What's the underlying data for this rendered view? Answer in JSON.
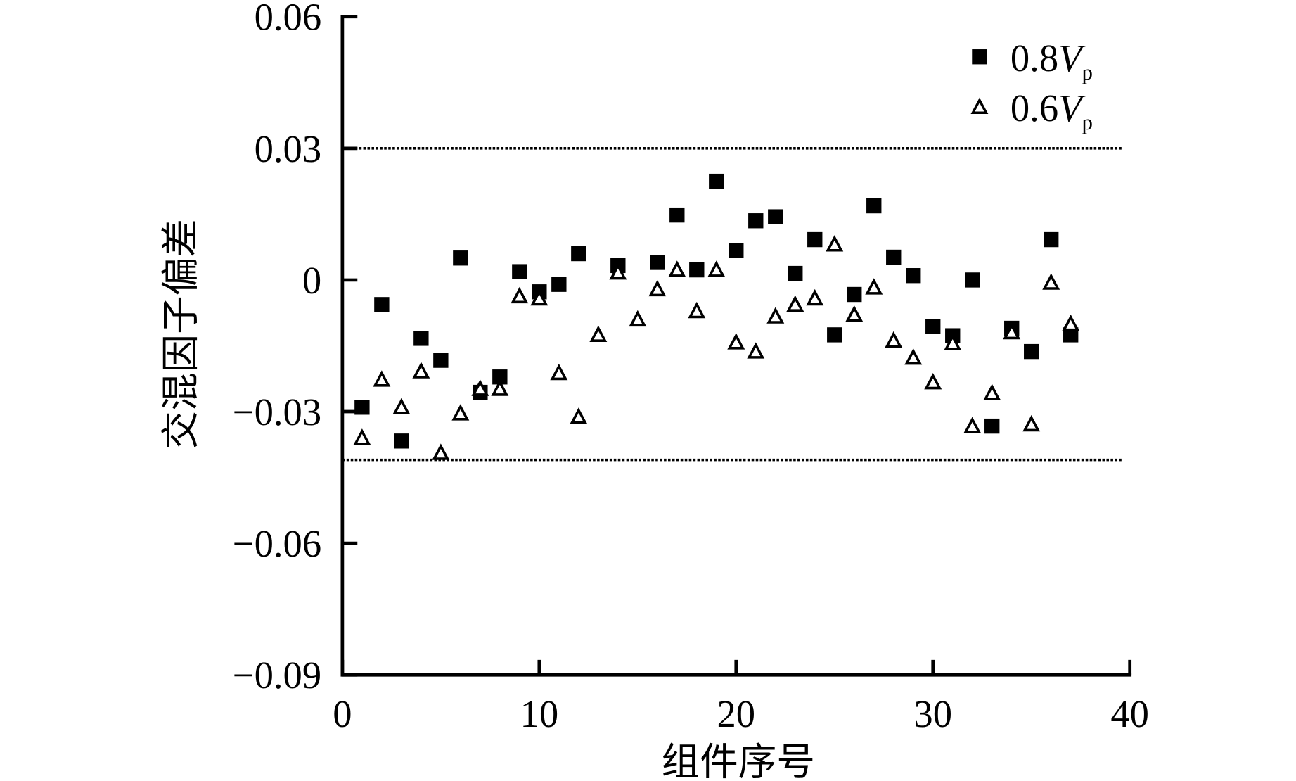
{
  "chart_data": {
    "type": "scatter",
    "xlabel": "组件序号",
    "ylabel": "交混因子偏差",
    "xlim": [
      0,
      40
    ],
    "ylim": [
      -0.09,
      0.06
    ],
    "xticks": [
      "0",
      "10",
      "20",
      "30",
      "40"
    ],
    "yticks": [
      "0.06",
      "0.03",
      "0",
      "−0.03",
      "−0.06",
      "−0.09"
    ],
    "ytick_values": [
      0.06,
      0.03,
      0,
      -0.03,
      -0.06,
      -0.09
    ],
    "xtick_values": [
      0,
      10,
      20,
      30,
      40
    ],
    "grid": false,
    "legend_position": "top-right",
    "reference_lines": [
      0.03,
      -0.041
    ],
    "series": [
      {
        "name": "0.8Vp",
        "legend": {
          "prefix": "0.8",
          "var": "V",
          "sub": "p"
        },
        "marker": "filled-square",
        "color": "#000000",
        "x": [
          1,
          2,
          3,
          4,
          5,
          6,
          7,
          8,
          9,
          10,
          11,
          12,
          14,
          16,
          17,
          18,
          19,
          20,
          21,
          22,
          23,
          24,
          25,
          26,
          27,
          28,
          29,
          30,
          31,
          32,
          33,
          34,
          35,
          36,
          37
        ],
        "y": [
          -0.029,
          -0.0056,
          -0.0367,
          -0.0133,
          -0.0183,
          0.005,
          -0.0256,
          -0.0221,
          0.0019,
          -0.0027,
          -0.001,
          0.006,
          0.0033,
          0.004,
          0.0148,
          0.0023,
          0.0225,
          0.0067,
          0.0135,
          0.0144,
          0.0015,
          0.0092,
          -0.0125,
          -0.0033,
          0.0169,
          0.0052,
          0.001,
          -0.0106,
          -0.0127,
          0.0,
          -0.0333,
          -0.011,
          -0.0163,
          0.0092,
          -0.0125
        ]
      },
      {
        "name": "0.6Vp",
        "legend": {
          "prefix": "0.6",
          "var": "V",
          "sub": "p"
        },
        "marker": "open-triangle",
        "color": "#000000",
        "x": [
          1,
          2,
          3,
          4,
          5,
          6,
          7,
          8,
          9,
          10,
          11,
          12,
          13,
          14,
          15,
          16,
          17,
          18,
          19,
          20,
          21,
          22,
          23,
          24,
          25,
          26,
          27,
          28,
          29,
          30,
          31,
          32,
          33,
          34,
          35,
          36,
          37
        ],
        "y": [
          -0.036,
          -0.0227,
          -0.029,
          -0.0208,
          -0.0394,
          -0.0304,
          -0.0248,
          -0.0248,
          -0.0037,
          -0.0042,
          -0.0212,
          -0.0312,
          -0.0125,
          0.0017,
          -0.009,
          -0.0021,
          0.0023,
          -0.0071,
          0.0023,
          -0.0142,
          -0.0163,
          -0.0083,
          -0.0056,
          -0.0042,
          0.0081,
          -0.0079,
          -0.0017,
          -0.0138,
          -0.0177,
          -0.0233,
          -0.0144,
          -0.0333,
          -0.0258,
          -0.0119,
          -0.0329,
          -0.0006,
          -0.01
        ]
      }
    ]
  }
}
